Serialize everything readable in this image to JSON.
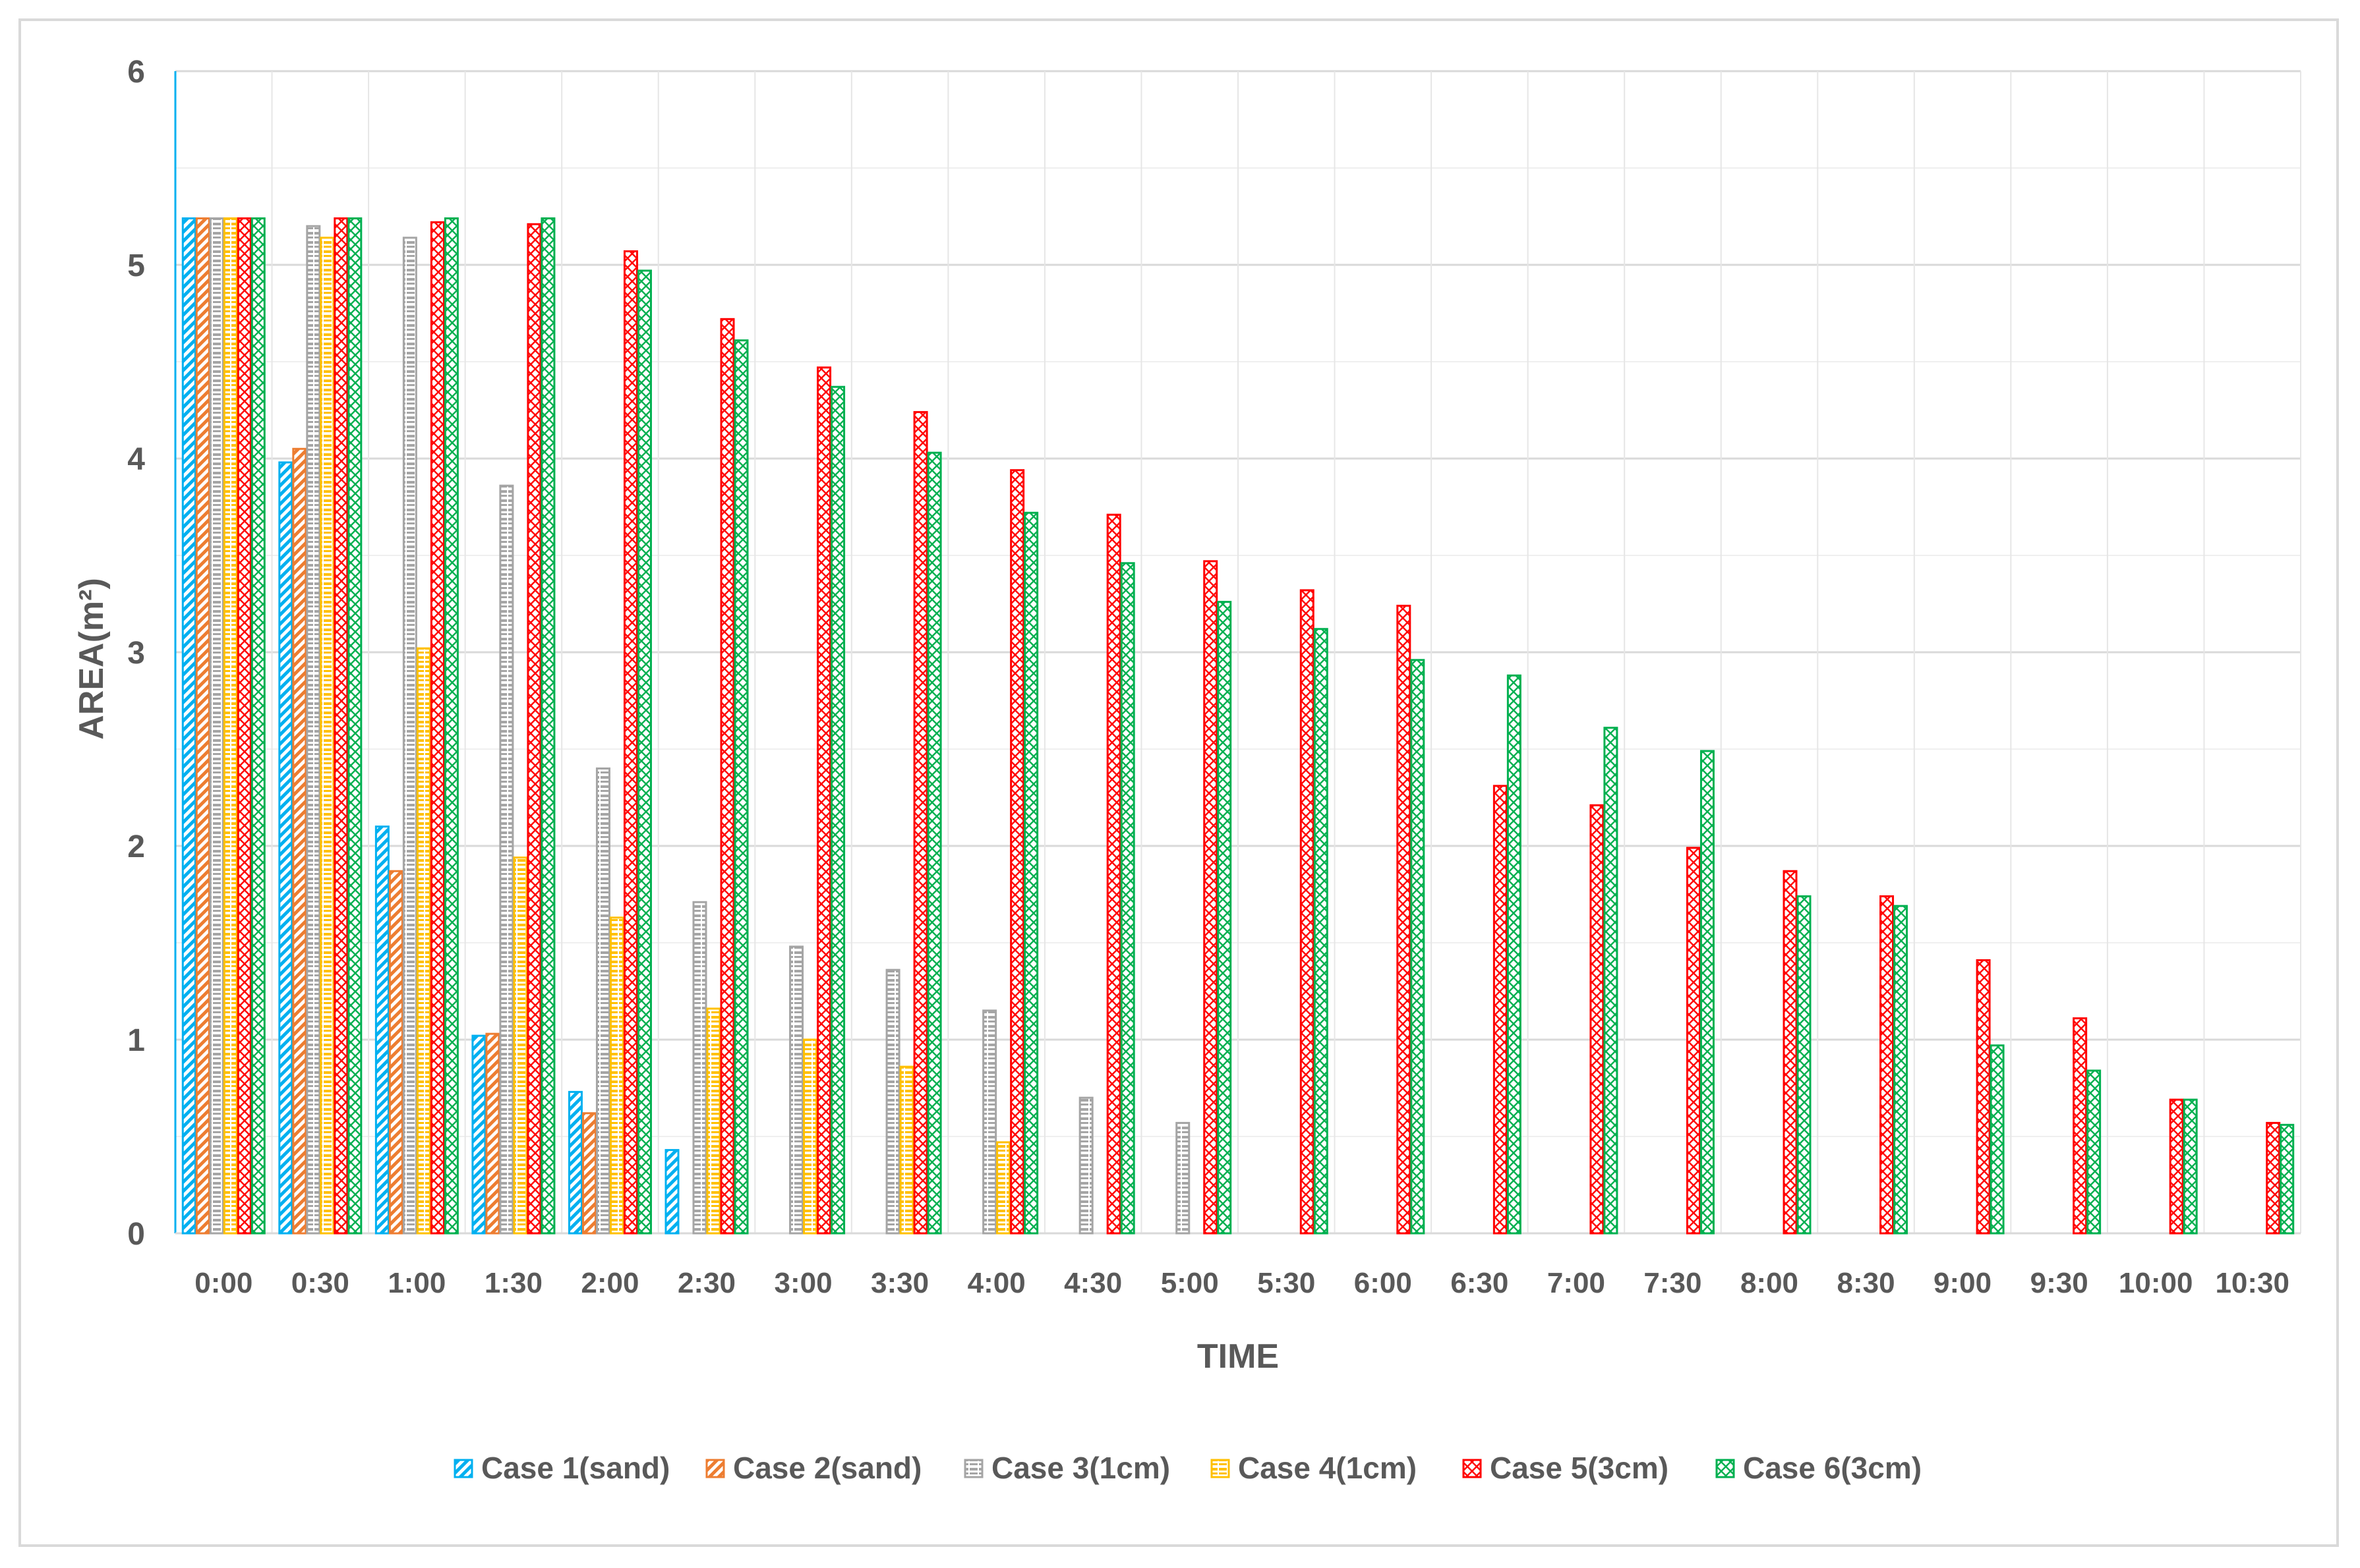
{
  "chart_data": {
    "type": "bar",
    "title": "",
    "xlabel": "TIME",
    "ylabel": "AREA(m²)",
    "ylim": [
      0,
      6
    ],
    "yticks": [
      "0",
      "1",
      "2",
      "3",
      "4",
      "5",
      "6"
    ],
    "grid": true,
    "legend_position": "bottom",
    "categories": [
      "0:00",
      "0:30",
      "1:00",
      "1:30",
      "2:00",
      "2:30",
      "3:00",
      "3:30",
      "4:00",
      "4:30",
      "5:00",
      "5:30",
      "6:00",
      "6:30",
      "7:00",
      "7:30",
      "8:00",
      "8:30",
      "9:00",
      "9:30",
      "10:00",
      "10:30"
    ],
    "series": [
      {
        "name": "Case 1(sand)",
        "color": "#00b0f0",
        "pattern": "diagonal-stripes",
        "values": [
          5.24,
          3.98,
          2.1,
          1.02,
          0.73,
          0.43,
          null,
          null,
          null,
          null,
          null,
          null,
          null,
          null,
          null,
          null,
          null,
          null,
          null,
          null,
          null,
          null
        ]
      },
      {
        "name": "Case 2(sand)",
        "color": "#ed7d31",
        "pattern": "diagonal-stripes",
        "values": [
          5.24,
          4.05,
          1.87,
          1.03,
          0.62,
          null,
          null,
          null,
          null,
          null,
          null,
          null,
          null,
          null,
          null,
          null,
          null,
          null,
          null,
          null,
          null,
          null
        ]
      },
      {
        "name": "Case 3(1cm)",
        "color": "#a5a5a5",
        "pattern": "horizontal-dashes",
        "values": [
          5.24,
          5.2,
          5.14,
          3.86,
          2.4,
          1.71,
          1.48,
          1.36,
          1.15,
          0.7,
          0.57,
          null,
          null,
          null,
          null,
          null,
          null,
          null,
          null,
          null,
          null,
          null
        ]
      },
      {
        "name": "Case 4(1cm)",
        "color": "#ffc000",
        "pattern": "horizontal-dashes",
        "values": [
          5.24,
          5.14,
          3.02,
          1.94,
          1.63,
          1.16,
          1.0,
          0.86,
          0.47,
          null,
          null,
          null,
          null,
          null,
          null,
          null,
          null,
          null,
          null,
          null,
          null,
          null
        ]
      },
      {
        "name": "Case 5(3cm)",
        "color": "#ff0000",
        "pattern": "cross-hatch",
        "values": [
          5.24,
          5.24,
          5.22,
          5.21,
          5.07,
          4.72,
          4.47,
          4.24,
          3.94,
          3.71,
          3.47,
          3.32,
          3.24,
          2.31,
          2.21,
          1.99,
          1.87,
          1.74,
          1.41,
          1.11,
          0.69,
          0.57
        ]
      },
      {
        "name": "Case 6(3cm)",
        "color": "#00b050",
        "pattern": "cross-hatch",
        "values": [
          5.24,
          5.24,
          5.24,
          5.24,
          4.97,
          4.61,
          4.37,
          4.03,
          3.72,
          3.46,
          3.26,
          3.12,
          2.96,
          2.88,
          2.61,
          2.49,
          1.74,
          1.69,
          0.97,
          0.84,
          0.69,
          0.56
        ]
      }
    ]
  }
}
